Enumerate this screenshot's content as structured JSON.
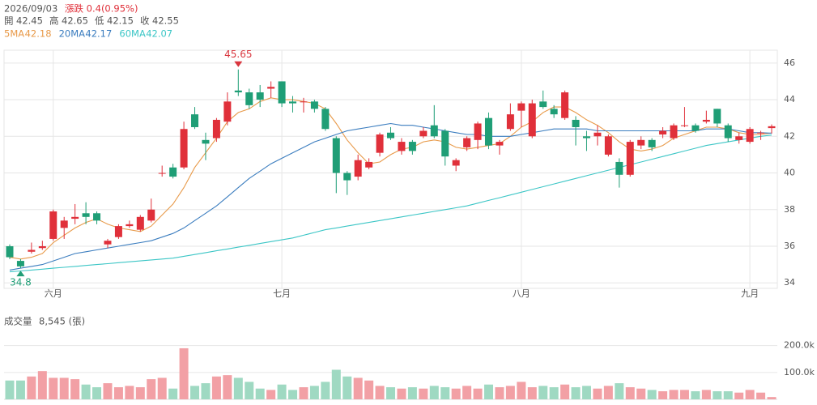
{
  "header": {
    "date": "2026/09/03",
    "change": "漲跌 0.4(0.95%)",
    "open_label": "開",
    "high_label": "高",
    "low_label": "低",
    "close_label": "收"
  },
  "chart_data": [
    {
      "type": "candlestick",
      "categories": [
        null,
        null,
        null,
        null,
        "六月",
        null,
        null,
        null,
        null,
        null,
        null,
        null,
        null,
        null,
        null,
        null,
        null,
        null,
        null,
        null,
        null,
        null,
        null,
        null,
        null,
        "七月",
        null,
        null,
        null,
        null,
        null,
        null,
        null,
        null,
        null,
        null,
        null,
        null,
        null,
        null,
        null,
        null,
        null,
        null,
        null,
        null,
        null,
        "八月",
        null,
        null,
        null,
        null,
        null,
        null,
        null,
        null,
        null,
        null,
        null,
        null,
        null,
        null,
        null,
        null,
        null,
        null,
        null,
        null,
        "九月",
        null,
        null
      ],
      "open": [
        36.0,
        35.2,
        35.7,
        35.9,
        36.4,
        37.0,
        37.5,
        37.8,
        37.8,
        36.1,
        36.5,
        37.1,
        36.9,
        37.4,
        40.0,
        40.3,
        40.3,
        43.2,
        41.8,
        41.9,
        42.8,
        44.5,
        44.4,
        44.4,
        44.6,
        45.0,
        43.9,
        43.9,
        43.9,
        43.5,
        41.9,
        40.0,
        39.8,
        40.3,
        41.1,
        42.2,
        41.2,
        41.7,
        42.0,
        42.6,
        42.3,
        40.4,
        41.4,
        41.8,
        43.0,
        41.5,
        42.4,
        43.4,
        42.0,
        43.9,
        43.5,
        43.0,
        42.9,
        42.0,
        42.0,
        41.0,
        40.6,
        39.9,
        41.5,
        41.8,
        42.1,
        41.9,
        42.6,
        42.6,
        42.8,
        43.5,
        42.6,
        41.8,
        41.7,
        42.2,
        42.45
      ],
      "high": [
        36.1,
        35.3,
        36.2,
        36.3,
        38.0,
        37.6,
        38.3,
        38.4,
        37.9,
        36.4,
        37.2,
        37.4,
        37.7,
        38.6,
        40.4,
        40.5,
        42.8,
        43.6,
        42.2,
        43.0,
        44.4,
        45.65,
        44.6,
        44.8,
        45.0,
        45.0,
        44.2,
        44.1,
        44.0,
        43.6,
        42.0,
        40.1,
        41.0,
        40.8,
        42.2,
        42.5,
        41.9,
        41.8,
        42.5,
        43.7,
        42.4,
        40.8,
        42.0,
        42.8,
        43.3,
        41.8,
        43.8,
        43.9,
        44.0,
        44.5,
        43.7,
        44.5,
        43.1,
        42.3,
        42.6,
        42.1,
        40.8,
        41.8,
        42.0,
        41.9,
        42.5,
        42.7,
        43.6,
        42.7,
        43.4,
        43.5,
        42.7,
        42.2,
        42.5,
        42.3,
        42.65
      ],
      "low": [
        35.3,
        34.8,
        35.6,
        35.8,
        36.3,
        36.4,
        37.2,
        37.2,
        37.2,
        35.9,
        36.4,
        37.0,
        36.8,
        37.3,
        39.8,
        39.7,
        40.2,
        42.4,
        40.7,
        41.7,
        42.6,
        44.2,
        43.5,
        43.6,
        44.1,
        43.6,
        43.3,
        43.3,
        43.3,
        42.3,
        38.9,
        38.8,
        39.6,
        40.2,
        40.9,
        41.8,
        41.0,
        41.0,
        41.9,
        41.9,
        40.4,
        40.1,
        41.2,
        41.3,
        41.3,
        41.0,
        42.3,
        42.5,
        41.9,
        43.5,
        43.0,
        42.9,
        41.5,
        41.2,
        41.5,
        40.9,
        39.2,
        39.8,
        41.3,
        41.2,
        41.9,
        41.8,
        42.5,
        42.2,
        42.7,
        42.5,
        41.7,
        41.6,
        41.6,
        41.8,
        42.15
      ],
      "close": [
        35.4,
        34.9,
        35.8,
        36.0,
        37.9,
        37.4,
        37.6,
        37.6,
        37.4,
        36.3,
        37.1,
        37.2,
        37.6,
        38.0,
        40.0,
        39.8,
        42.4,
        42.5,
        41.6,
        42.9,
        43.9,
        44.4,
        43.7,
        44.0,
        44.7,
        43.8,
        43.8,
        43.9,
        43.5,
        42.4,
        40.0,
        39.6,
        40.7,
        40.6,
        42.1,
        41.9,
        41.7,
        41.2,
        42.3,
        42.0,
        40.9,
        40.7,
        41.9,
        42.7,
        41.5,
        41.7,
        43.2,
        43.8,
        43.8,
        43.6,
        43.2,
        44.4,
        42.5,
        41.9,
        42.2,
        42.0,
        39.9,
        41.7,
        41.8,
        41.4,
        42.3,
        42.6,
        42.6,
        42.3,
        42.9,
        42.7,
        41.9,
        42.0,
        42.4,
        42.2,
        42.55
      ],
      "up_color": "#e0303a",
      "down_color": "#1f9e76",
      "series": [
        {
          "name": "5MA",
          "color": "#e89a4a",
          "values": [
            35.4,
            35.3,
            35.4,
            35.6,
            36.2,
            36.6,
            37.0,
            37.3,
            37.5,
            37.2,
            37.0,
            36.9,
            36.8,
            37.1,
            37.7,
            38.3,
            39.2,
            40.3,
            41.1,
            41.9,
            42.8,
            43.3,
            43.5,
            43.9,
            44.1,
            44.0,
            44.0,
            43.9,
            43.8,
            43.5,
            42.7,
            41.8,
            41.1,
            40.5,
            40.6,
            41.0,
            41.3,
            41.4,
            41.7,
            41.8,
            41.7,
            41.4,
            41.3,
            41.4,
            41.5,
            41.6,
            42.0,
            42.5,
            42.8,
            43.3,
            43.6,
            43.6,
            43.3,
            42.9,
            42.6,
            42.2,
            41.7,
            41.3,
            41.2,
            41.3,
            41.5,
            41.9,
            42.1,
            42.3,
            42.5,
            42.5,
            42.4,
            42.2,
            42.1,
            42.1,
            42.18
          ]
        },
        {
          "name": "20MA",
          "color": "#3b7dbf",
          "values": [
            34.7,
            34.8,
            34.9,
            35.0,
            35.2,
            35.4,
            35.6,
            35.7,
            35.8,
            35.9,
            36.0,
            36.1,
            36.2,
            36.3,
            36.5,
            36.7,
            37.0,
            37.4,
            37.8,
            38.2,
            38.7,
            39.2,
            39.7,
            40.1,
            40.5,
            40.8,
            41.1,
            41.4,
            41.7,
            41.9,
            42.1,
            42.3,
            42.4,
            42.5,
            42.6,
            42.7,
            42.6,
            42.6,
            42.5,
            42.4,
            42.3,
            42.2,
            42.1,
            42.1,
            42.0,
            42.0,
            42.0,
            42.1,
            42.2,
            42.3,
            42.4,
            42.4,
            42.4,
            42.4,
            42.3,
            42.3,
            42.3,
            42.3,
            42.3,
            42.3,
            42.3,
            42.3,
            42.3,
            42.3,
            42.4,
            42.4,
            42.4,
            42.3,
            42.2,
            42.2,
            42.17
          ]
        },
        {
          "name": "60MA",
          "color": "#3cc6c6",
          "values": [
            34.6,
            34.65,
            34.7,
            34.75,
            34.8,
            34.85,
            34.9,
            34.95,
            35.0,
            35.05,
            35.1,
            35.15,
            35.2,
            35.25,
            35.3,
            35.35,
            35.45,
            35.55,
            35.65,
            35.75,
            35.85,
            35.95,
            36.05,
            36.15,
            36.25,
            36.35,
            36.45,
            36.6,
            36.75,
            36.9,
            37.0,
            37.1,
            37.2,
            37.3,
            37.4,
            37.5,
            37.6,
            37.7,
            37.8,
            37.9,
            38.0,
            38.1,
            38.2,
            38.35,
            38.5,
            38.65,
            38.8,
            38.95,
            39.1,
            39.25,
            39.4,
            39.55,
            39.7,
            39.85,
            40.0,
            40.15,
            40.3,
            40.45,
            40.6,
            40.75,
            40.9,
            41.05,
            41.2,
            41.35,
            41.5,
            41.6,
            41.7,
            41.8,
            41.9,
            42.0,
            42.07
          ]
        }
      ],
      "annotations": [
        {
          "label": "45.65",
          "value": 45.65
        },
        {
          "label": "34.8",
          "value": 34.8
        }
      ],
      "ylim": [
        33.7,
        46.7
      ],
      "yticks": [
        34,
        36,
        38,
        40,
        42,
        44,
        46
      ],
      "grid": true
    },
    {
      "type": "bar",
      "title": "成交量",
      "subtitle": "8,545 (張)",
      "values": [
        70000,
        70000,
        85000,
        105000,
        80000,
        80000,
        75000,
        55000,
        45000,
        60000,
        45000,
        50000,
        45000,
        75000,
        80000,
        40000,
        190000,
        50000,
        60000,
        85000,
        90000,
        80000,
        65000,
        40000,
        35000,
        55000,
        35000,
        45000,
        50000,
        65000,
        110000,
        85000,
        80000,
        70000,
        50000,
        45000,
        40000,
        45000,
        40000,
        50000,
        45000,
        40000,
        50000,
        40000,
        55000,
        45000,
        50000,
        65000,
        45000,
        50000,
        45000,
        55000,
        45000,
        50000,
        40000,
        50000,
        60000,
        45000,
        40000,
        35000,
        30000,
        35000,
        35000,
        30000,
        35000,
        30000,
        30000,
        25000,
        35000,
        25000,
        8545
      ],
      "up_color": "#f2a0a5",
      "down_color": "#9fd9c2",
      "ylim": [
        0,
        220000
      ],
      "yticks": [
        {
          "value": 100000,
          "label": "100.0k"
        },
        {
          "value": 200000,
          "label": "200.0k"
        }
      ],
      "grid": true
    }
  ]
}
